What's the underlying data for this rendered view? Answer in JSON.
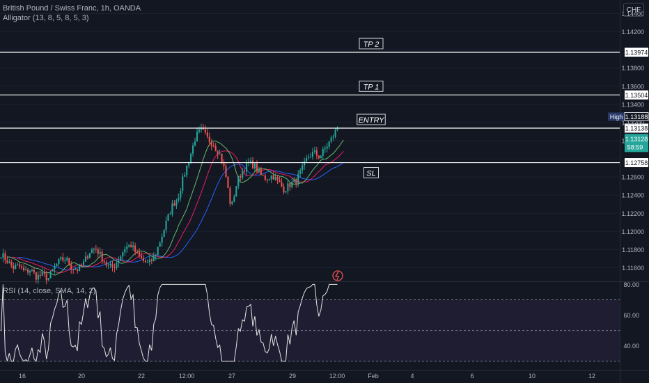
{
  "header": {
    "symbol_line": "British Pound / Swiss Franc, 1h, OANDA",
    "indicator_line": "Alligator (13, 8, 5, 8, 5, 3)",
    "currency": "CHF"
  },
  "rsi": {
    "legend": "RSI (14, close, SMA, 14, 2)",
    "axis_labels": [
      "80.00",
      "60.00",
      "40.00"
    ],
    "levels": [
      70,
      50,
      30
    ]
  },
  "levels": [
    {
      "name": "tp2",
      "label": "TP 2",
      "price": 1.13974,
      "price_label": "1.13974"
    },
    {
      "name": "tp1",
      "label": "TP 1",
      "price": 1.13504,
      "price_label": "1.13504"
    },
    {
      "name": "entry",
      "label": "ENTRY",
      "price": 1.13138,
      "price_label": "1.13138"
    },
    {
      "name": "sl",
      "label": "SL",
      "price": 1.12758,
      "price_label": "1.12758"
    }
  ],
  "badges": {
    "high_label": "High",
    "high_value": "1.13188",
    "last_value": "1.13128",
    "countdown": "58:59"
  },
  "colors": {
    "background": "#131722",
    "bull": "#26a69a",
    "bear": "#ef5350",
    "jaw": "#2962ff",
    "teeth": "#e91e63",
    "lips": "#66bb6a",
    "rsi_line": "#e6e6e6",
    "rsi_band": "#7e57c2"
  },
  "chart_data": {
    "type": "candlestick",
    "title": "British Pound / Swiss Franc, 1h, OANDA",
    "ylim": [
      1.1145,
      1.1455
    ],
    "y_ticks": [
      1.144,
      1.142,
      1.14,
      1.138,
      1.136,
      1.134,
      1.132,
      1.13,
      1.128,
      1.126,
      1.124,
      1.122,
      1.12,
      1.118,
      1.116
    ],
    "y_tick_labels": [
      "1.14400",
      "1.14200",
      "1.14000",
      "1.13800",
      "1.13600",
      "1.13400",
      "1.13200",
      "1.13000",
      "1.12800",
      "1.12600",
      "1.12400",
      "1.12200",
      "1.12000",
      "1.11800",
      "1.11600"
    ],
    "x_labels": [
      "16",
      "20",
      "22",
      "12:00",
      "27",
      "29",
      "12:00",
      "Feb",
      "4",
      "6",
      "10",
      "12"
    ],
    "close_path": [
      1.1175,
      1.1168,
      1.116,
      1.1162,
      1.1155,
      1.1158,
      1.115,
      1.1152,
      1.1148,
      1.116,
      1.1168,
      1.117,
      1.116,
      1.1158,
      1.1165,
      1.1178,
      1.1182,
      1.1172,
      1.1162,
      1.116,
      1.117,
      1.1182,
      1.1185,
      1.1175,
      1.1168,
      1.1164,
      1.1172,
      1.119,
      1.121,
      1.1228,
      1.1238,
      1.1262,
      1.1282,
      1.1305,
      1.1312,
      1.1302,
      1.1296,
      1.1286,
      1.1265,
      1.1225,
      1.1255,
      1.1268,
      1.1276,
      1.1272,
      1.1262,
      1.1258,
      1.1262,
      1.1254,
      1.1246,
      1.1252,
      1.1256,
      1.1268,
      1.1282,
      1.1287,
      1.1282,
      1.1292,
      1.1302,
      1.1314
    ],
    "rsi_ylim": [
      24,
      82
    ]
  }
}
